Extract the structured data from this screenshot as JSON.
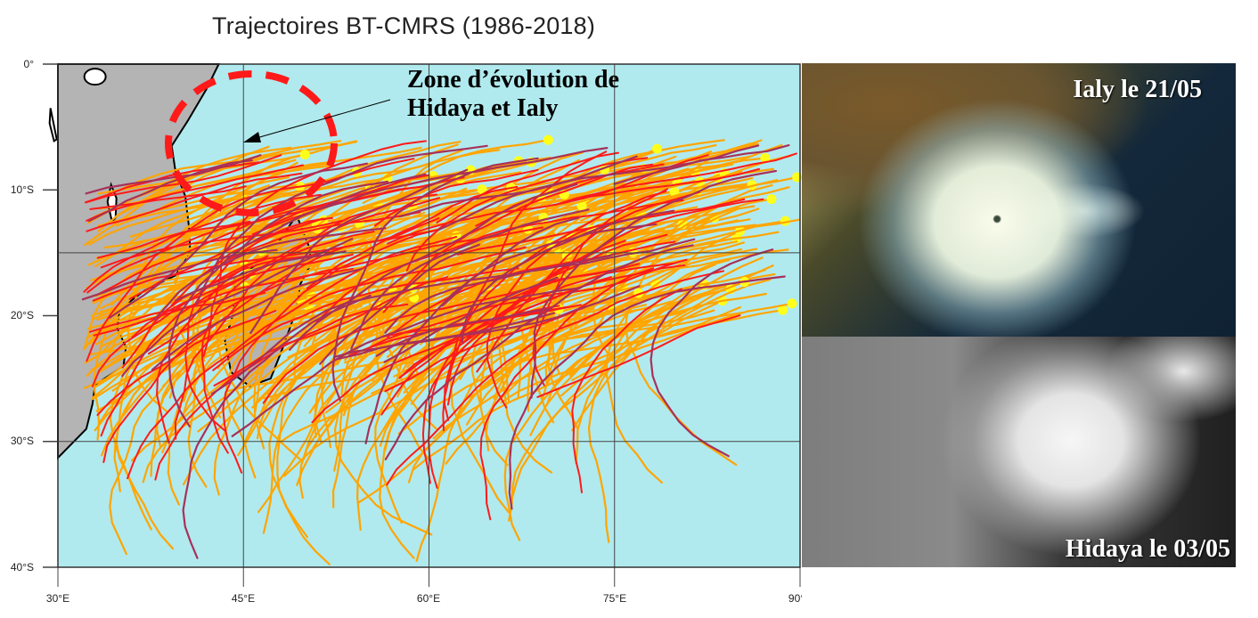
{
  "title": "Trajectoires BT-CMRS (1986-2018)",
  "map": {
    "lon_range": [
      30,
      90
    ],
    "lat_range": [
      0,
      -40
    ],
    "x_ticks": [
      "30°E",
      "45°E",
      "60°E",
      "75°E",
      "90°E"
    ],
    "y_ticks": [
      "0°",
      "10°S",
      "20°S",
      "30°S",
      "40°S"
    ],
    "gridlines": true,
    "colors": {
      "ocean": "#b0eaee",
      "land": "#b4b4b4",
      "track_weak": "#ffa500",
      "track_strong": "#ff1a1a",
      "track_intense": "#a8305a",
      "genesis_point": "#ffff1a",
      "highlight_circle": "#ff1a1a"
    }
  },
  "annotation": {
    "line1": "Zone d’évolution de",
    "line2": "Hidaya et Ialy"
  },
  "images": [
    {
      "caption": "Ialy le 21/05"
    },
    {
      "caption": "Hidaya le 03/05"
    }
  ]
}
